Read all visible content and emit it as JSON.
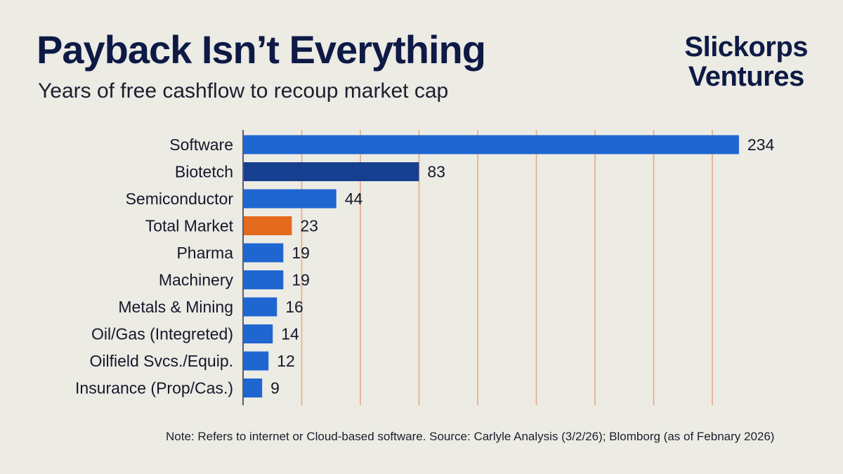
{
  "header": {
    "title": "Payback Isn’t Everything",
    "subtitle": "Years of free cashflow to recoup market cap"
  },
  "brand": {
    "line1": "Slickorps",
    "line2": "Ventures"
  },
  "note": "Note: Refers to internet or Cloud-based software. Source: Carlyle Analysis (3/2/26); Blomborg (as of Febnary 2026)",
  "chart_data": {
    "type": "bar",
    "orientation": "horizontal",
    "title": "Payback Isn’t Everything",
    "subtitle": "Years of free cashflow to recoup market cap",
    "xlabel": "",
    "ylabel": "",
    "xlim": [
      0,
      240
    ],
    "grid": "vertical",
    "legend": "none",
    "categories": [
      "Software",
      "Biotetch",
      "Semiconductor",
      "Total Market",
      "Pharma",
      "Machinery",
      "Metals & Mining",
      "Oil/Gas (Integreted)",
      "Oilfield Svcs./Equip.",
      "Insurance (Prop/Cas.)"
    ],
    "values": [
      234,
      83,
      44,
      23,
      19,
      19,
      16,
      14,
      12,
      9
    ],
    "colors": [
      "#1f66d1",
      "#173f8f",
      "#1f66d1",
      "#e46a1e",
      "#1f66d1",
      "#1f66d1",
      "#1f66d1",
      "#1f66d1",
      "#1f66d1",
      "#1f66d1"
    ],
    "grid_color": "#e8a983",
    "axis_color": "#2a2f45"
  }
}
